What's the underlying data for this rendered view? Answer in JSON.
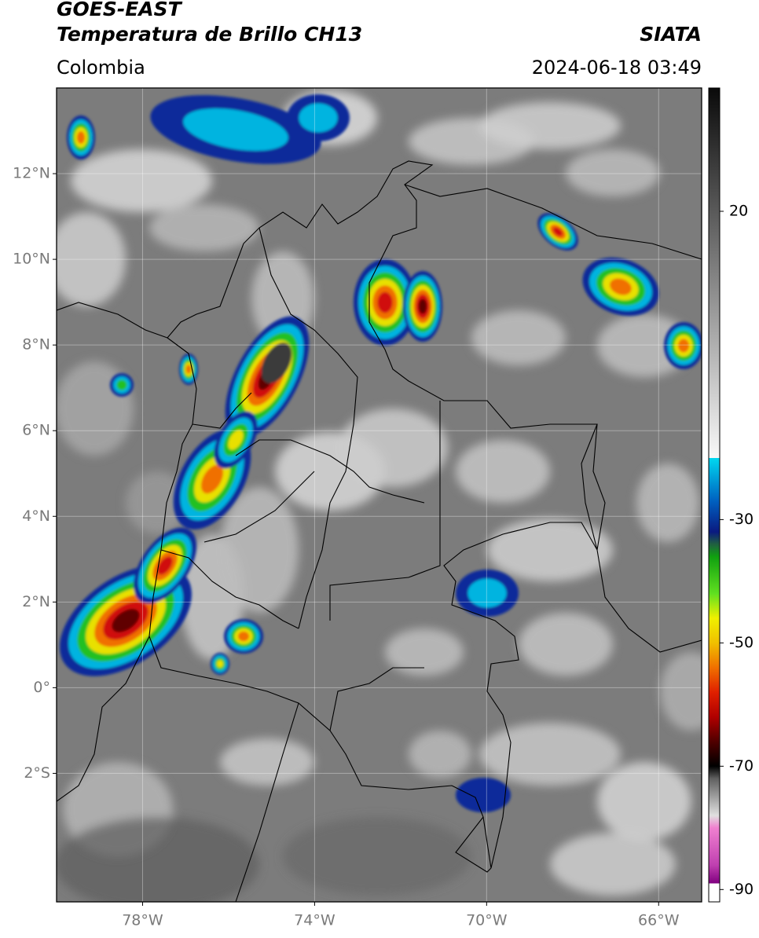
{
  "header": {
    "title": "GOES-EAST",
    "subtitle": "Temperatura de Brillo CH13",
    "source": "SIATA",
    "region": "Colombia",
    "datetime": "2024-06-18 03:49"
  },
  "map": {
    "xlim": [
      -80,
      -65
    ],
    "ylim": [
      -5,
      14
    ],
    "xticks": [
      {
        "value": -78,
        "label": "78°W"
      },
      {
        "value": -74,
        "label": "74°W"
      },
      {
        "value": -70,
        "label": "70°W"
      },
      {
        "value": -66,
        "label": "66°W"
      }
    ],
    "yticks": [
      {
        "value": -2,
        "label": "2°S"
      },
      {
        "value": 0,
        "label": "0°"
      },
      {
        "value": 2,
        "label": "2°N"
      },
      {
        "value": 4,
        "label": "4°N"
      },
      {
        "value": 6,
        "label": "6°N"
      },
      {
        "value": 8,
        "label": "8°N"
      },
      {
        "value": 10,
        "label": "10°N"
      },
      {
        "value": 12,
        "label": "12°N"
      }
    ],
    "grid": true
  },
  "colorbar": {
    "lim": [
      -92,
      40
    ],
    "ticks": [
      -90,
      -70,
      -50,
      -30,
      20
    ],
    "colormap": [
      {
        "value": 40,
        "color": "#0a0a0a"
      },
      {
        "value": -20,
        "color": "#f8f8f8"
      },
      {
        "value": -20,
        "color": "#00d8f0"
      },
      {
        "value": -27,
        "color": "#0060c0"
      },
      {
        "value": -32,
        "color": "#0a1a80"
      },
      {
        "value": -34,
        "color": "#206040"
      },
      {
        "value": -36,
        "color": "#10a010"
      },
      {
        "value": -42,
        "color": "#60e020"
      },
      {
        "value": -46,
        "color": "#f0f000"
      },
      {
        "value": -50,
        "color": "#f0c000"
      },
      {
        "value": -54,
        "color": "#f07000"
      },
      {
        "value": -58,
        "color": "#e02000"
      },
      {
        "value": -62,
        "color": "#b00000"
      },
      {
        "value": -66,
        "color": "#500000"
      },
      {
        "value": -70,
        "color": "#000000"
      },
      {
        "value": -72,
        "color": "#606060"
      },
      {
        "value": -78,
        "color": "#e0e0e0"
      },
      {
        "value": -80,
        "color": "#f080d0"
      },
      {
        "value": -86,
        "color": "#c040b0"
      },
      {
        "value": -89,
        "color": "#800080"
      },
      {
        "value": -89,
        "color": "#ffffff"
      },
      {
        "value": -92,
        "color": "#ffffff"
      }
    ]
  }
}
